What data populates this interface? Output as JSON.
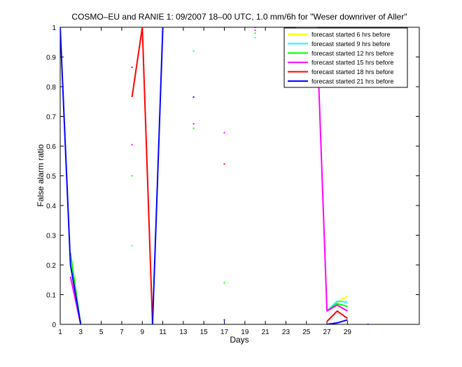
{
  "chart_data": {
    "type": "line",
    "title": "COSMO–EU and RANIE 1: 09/2007 18–00 UTC, 1.0 mm/6h for \"Weser downriver of Aller\"",
    "xlabel": "Days",
    "ylabel": "False alarm ratio",
    "xlim": [
      1,
      36
    ],
    "ylim": [
      0,
      1
    ],
    "xticks": [
      1,
      3,
      5,
      7,
      9,
      11,
      13,
      15,
      17,
      19,
      21,
      23,
      25,
      27,
      29
    ],
    "yticks": [
      0,
      0.1,
      0.2,
      0.3,
      0.4,
      0.5,
      0.6,
      0.7,
      0.8,
      0.9,
      1
    ],
    "ytick_labels": [
      "0",
      "0.1",
      "0.2",
      "0.3",
      "0.4",
      "0.5",
      "0.6",
      "0.7",
      "0.8",
      "0.9",
      "1"
    ],
    "legend_position": "top-right",
    "grid": false,
    "series": [
      {
        "name": "forecast started 6 hrs before",
        "color": "#ffff00",
        "segments": [
          [
            [
              27,
              0.045
            ],
            [
              28,
              0.075
            ],
            [
              29,
              0.095
            ]
          ]
        ],
        "points": []
      },
      {
        "name": "forecast started 9 hrs before",
        "color": "#00ffff",
        "segments": [
          [
            [
              27,
              0.045
            ],
            [
              28,
              0.078
            ],
            [
              29,
              0.075
            ]
          ]
        ],
        "points": [
          [
            8,
            0.265
          ],
          [
            14,
            0.92
          ],
          [
            20,
            0.965
          ]
        ]
      },
      {
        "name": "forecast started 12 hrs before",
        "color": "#00ff00",
        "segments": [
          [
            [
              2,
              0.24
            ],
            [
              3,
              0.0
            ]
          ],
          [
            [
              27,
              0.045
            ],
            [
              28,
              0.07
            ],
            [
              29,
              0.06
            ]
          ]
        ],
        "points": [
          [
            8,
            0.5
          ],
          [
            14,
            0.66
          ],
          [
            17,
            0.14
          ],
          [
            20,
            0.98
          ]
        ]
      },
      {
        "name": "forecast started 15 hrs before",
        "color": "#ff00ff",
        "segments": [
          [
            [
              2,
              0.16
            ],
            [
              3,
              0.0
            ]
          ],
          [
            [
              24,
              1.0
            ],
            [
              26,
              1.0
            ],
            [
              27,
              0.045
            ],
            [
              28,
              0.065
            ],
            [
              29,
              0.045
            ]
          ]
        ],
        "points": [
          [
            8,
            0.605
          ],
          [
            14,
            0.675
          ],
          [
            17,
            0.645
          ],
          [
            20,
            0.99
          ]
        ]
      },
      {
        "name": "forecast started 18 hrs before",
        "color": "#ff0000",
        "segments": [
          [
            [
              8,
              0.765
            ],
            [
              9,
              1.0
            ],
            [
              10,
              0.0
            ]
          ],
          [
            [
              27,
              0.01
            ],
            [
              28,
              0.045
            ],
            [
              29,
              0.02
            ]
          ]
        ],
        "points": [
          [
            8,
            0.865
          ],
          [
            17,
            0.54
          ]
        ]
      },
      {
        "name": "forecast started 21 hrs before",
        "color": "#0000ff",
        "segments": [
          [
            [
              1,
              1.0
            ],
            [
              2,
              0.2
            ],
            [
              3,
              0.0
            ]
          ],
          [
            [
              10,
              0.0
            ],
            [
              11,
              1.0
            ]
          ],
          [
            [
              27,
              0.0
            ],
            [
              28,
              0.005
            ],
            [
              29,
              0.015
            ]
          ]
        ],
        "points": [
          [
            14,
            0.765
          ],
          [
            17,
            0.015
          ],
          [
            20,
            1.0
          ],
          [
            31,
            0.0
          ]
        ]
      }
    ]
  }
}
